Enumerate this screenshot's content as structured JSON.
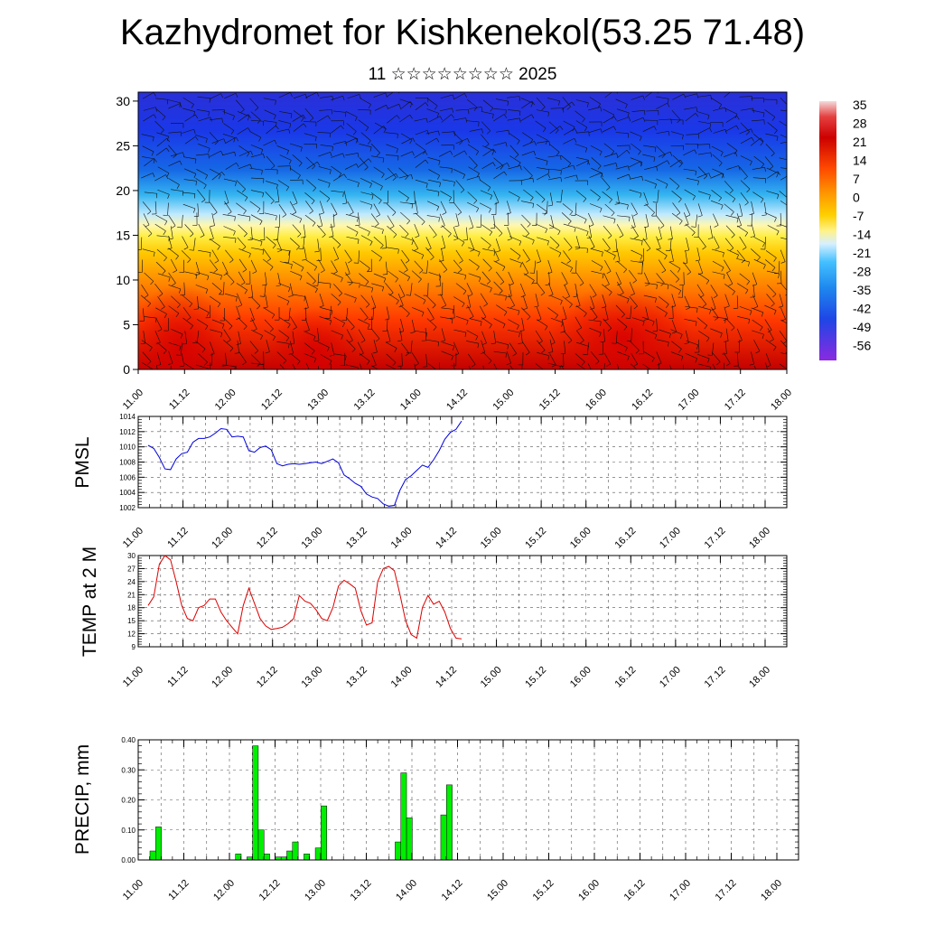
{
  "header": {
    "title": "Kazhydromet for Kishkenekol(53.25 71.48)",
    "subtitle": "11 ☆☆☆☆☆☆☆☆ 2025"
  },
  "time_labels": [
    "11.00",
    "11.12",
    "12.00",
    "12.12",
    "13.00",
    "13.12",
    "14.00",
    "14.12",
    "15.00",
    "15.12",
    "16.00",
    "16.12",
    "17.00",
    "17.12",
    "18.00"
  ],
  "colors": {
    "pmsl_line": "#0000dd",
    "temp_line": "#dd0000",
    "precip_bar": "#00ee00",
    "precip_bar_edge": "#000000"
  },
  "chart_data": [
    {
      "type": "heatmap",
      "title": "",
      "xlabel": "",
      "ylabel": "",
      "x_tick_labels": [
        "11.00",
        "11.12",
        "12.00",
        "12.12",
        "13.00",
        "13.12",
        "14.00",
        "14.12",
        "15.00",
        "15.12",
        "16.00",
        "16.12",
        "17.00",
        "17.12",
        "18.00"
      ],
      "y_ticks": [
        0,
        5,
        10,
        15,
        20,
        25,
        30
      ],
      "ylim": [
        0,
        31
      ],
      "colorbar_labels": [
        "35",
        "28",
        "21",
        "14",
        "7",
        "0",
        "-7",
        "-14",
        "-21",
        "-28",
        "-35",
        "-42",
        "-49",
        "-56"
      ],
      "colorbar_range": [
        -60,
        38
      ],
      "overlay": "wind-barbs"
    },
    {
      "type": "line",
      "ylabel": "PMSL",
      "ylim": [
        1002,
        1014
      ],
      "y_ticks": [
        1002,
        1004,
        1006,
        1008,
        1010,
        1012,
        1014
      ],
      "x_tick_labels": [
        "11.00",
        "11.12",
        "12.00",
        "12.12",
        "13.00",
        "13.12",
        "14.00",
        "14.12",
        "15.00",
        "15.12",
        "16.00",
        "16.12",
        "17.00",
        "17.12",
        "18.00"
      ],
      "values": [
        1010.2,
        1009.8,
        1008.6,
        1007.1,
        1007.0,
        1008.4,
        1009.1,
        1009.3,
        1010.6,
        1011.1,
        1011.1,
        1011.3,
        1011.8,
        1012.4,
        1012.3,
        1011.3,
        1011.4,
        1011.3,
        1009.5,
        1009.3,
        1009.9,
        1010.1,
        1009.6,
        1007.8,
        1007.5,
        1007.7,
        1007.8,
        1007.7,
        1007.8,
        1007.9,
        1008.0,
        1007.8,
        1008.1,
        1008.4,
        1007.9,
        1006.3,
        1005.8,
        1005.2,
        1004.8,
        1003.8,
        1003.4,
        1003.2,
        1002.5,
        1002.2,
        1002.3,
        1004.3,
        1005.7,
        1006.2,
        1006.9,
        1007.6,
        1007.3,
        1008.3,
        1009.5,
        1011.0,
        1011.9,
        1012.3,
        1013.4
      ]
    },
    {
      "type": "line",
      "ylabel": "TEMP at 2 M",
      "ylim": [
        9,
        30
      ],
      "y_ticks": [
        9,
        12,
        15,
        18,
        21,
        24,
        27,
        30
      ],
      "x_tick_labels": [
        "11.00",
        "11.12",
        "12.00",
        "12.12",
        "13.00",
        "13.12",
        "14.00",
        "14.12",
        "15.00",
        "15.12",
        "16.00",
        "16.12",
        "17.00",
        "17.12",
        "18.00"
      ],
      "values": [
        18.5,
        20.5,
        28.0,
        30.0,
        29.0,
        24.0,
        18.5,
        15.5,
        15.0,
        18.0,
        18.5,
        20.0,
        20.0,
        17.0,
        15.0,
        13.5,
        12.0,
        18.5,
        22.5,
        19.0,
        15.5,
        13.8,
        13.0,
        13.2,
        13.5,
        14.3,
        15.5,
        20.8,
        19.5,
        19.0,
        17.5,
        15.5,
        15.0,
        18.0,
        23.0,
        24.3,
        23.5,
        22.5,
        17.3,
        14.0,
        14.5,
        24.0,
        27.0,
        27.5,
        26.5,
        21.0,
        15.0,
        11.8,
        11.0,
        18.0,
        20.8,
        18.8,
        19.5,
        17.0,
        13.2,
        11.0,
        10.8
      ]
    },
    {
      "type": "bar",
      "ylabel": "PRECIP, mm",
      "ylim": [
        0,
        0.4
      ],
      "y_tick_labels": [
        "0.00",
        "0.10",
        "0.20",
        "0.30",
        "0.40"
      ],
      "x_tick_labels": [
        "11.00",
        "11.12",
        "12.00",
        "12.12",
        "13.00",
        "13.12",
        "14.00",
        "14.12",
        "15.00",
        "15.12",
        "16.00",
        "16.12",
        "17.00",
        "17.12",
        "18.00"
      ],
      "values": [
        0.03,
        0.11,
        0,
        0,
        0,
        0,
        0,
        0,
        0,
        0,
        0,
        0,
        0,
        0,
        0,
        0.02,
        0,
        0.01,
        0.38,
        0.1,
        0.02,
        0,
        0.01,
        0.01,
        0.03,
        0.06,
        0,
        0.02,
        0,
        0.04,
        0.18,
        0,
        0,
        0,
        0,
        0,
        0,
        0,
        0,
        0,
        0,
        0,
        0,
        0.06,
        0.29,
        0.14,
        0,
        0,
        0,
        0,
        0,
        0.15,
        0.25,
        0,
        0,
        0
      ]
    }
  ]
}
